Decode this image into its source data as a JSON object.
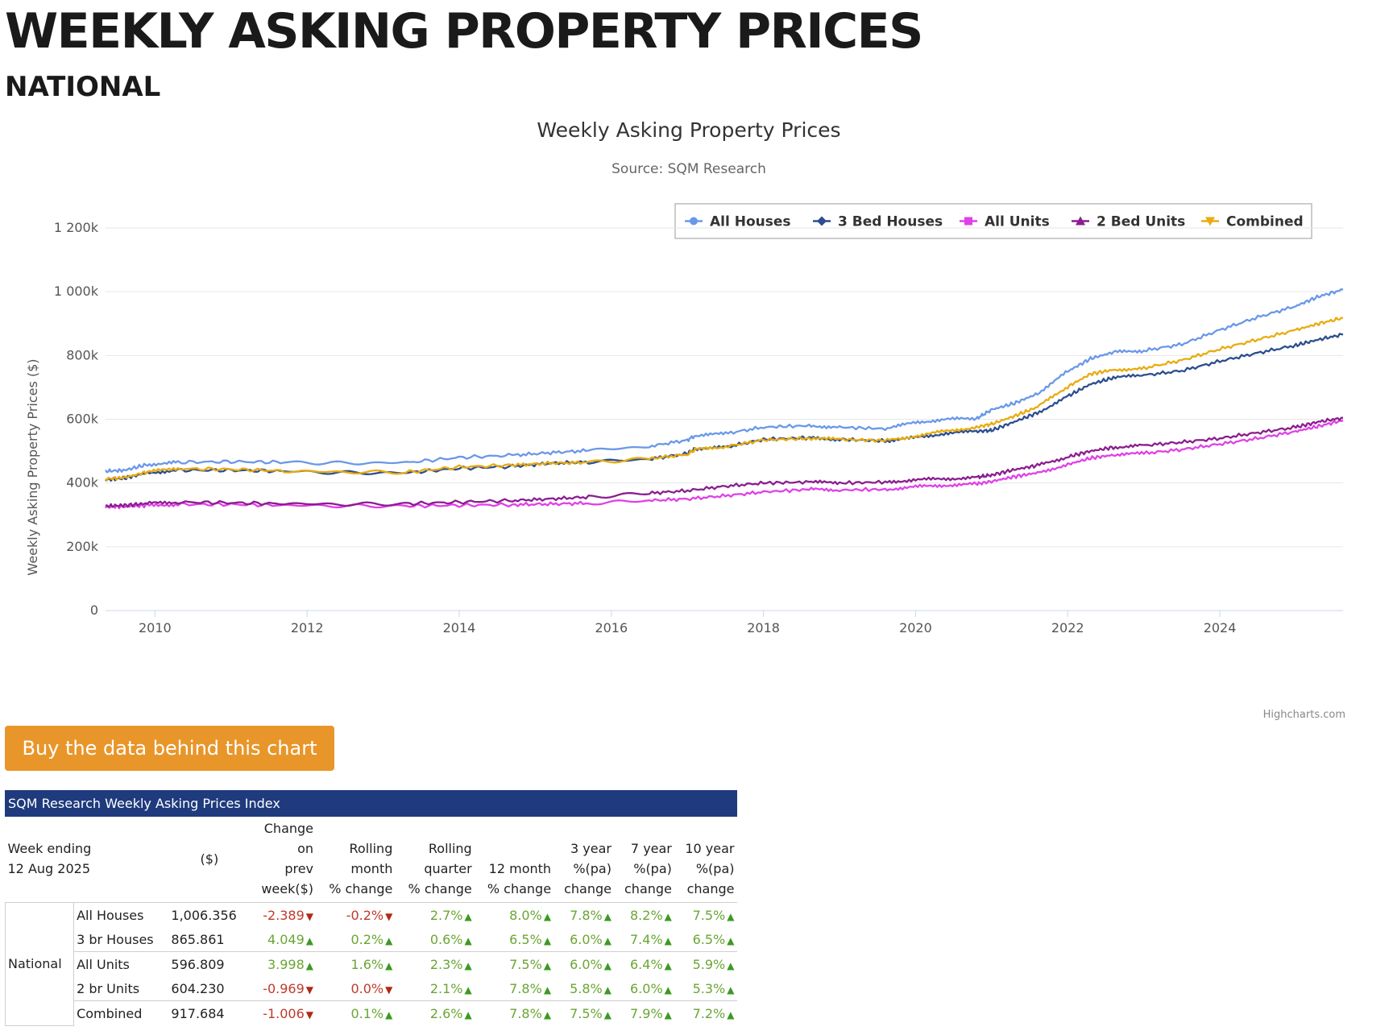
{
  "page": {
    "title": "WEEKLY ASKING PROPERTY PRICES",
    "subtitle": "NATIONAL",
    "buy_button": "Buy the data behind this chart"
  },
  "colors": {
    "all_houses": "#6a98e8",
    "three_bed_houses": "#2d4e8f",
    "all_units": "#e040e8",
    "two_bed_units": "#8b1e8f",
    "combined": "#e8ac10",
    "button": "#e8962a",
    "table_header": "#1f3b7d"
  },
  "chart_data": {
    "type": "line",
    "title": "Weekly Asking Property Prices",
    "subtitle": "Source: SQM Research",
    "xlabel": "",
    "ylabel": "Weekly Asking Property Prices ($)",
    "credits": "Highcharts.com",
    "legend_position": "top-right",
    "grid": true,
    "xlim": [
      2009.35,
      2025.62
    ],
    "ylim": [
      0,
      1200000
    ],
    "yticks": [
      {
        "value": 0,
        "label": "0"
      },
      {
        "value": 200000,
        "label": "200k"
      },
      {
        "value": 400000,
        "label": "400k"
      },
      {
        "value": 600000,
        "label": "600k"
      },
      {
        "value": 800000,
        "label": "800k"
      },
      {
        "value": 1000000,
        "label": "1 000k"
      },
      {
        "value": 1200000,
        "label": "1 200k"
      }
    ],
    "xticks": [
      {
        "value": 2010,
        "label": "2010"
      },
      {
        "value": 2012,
        "label": "2012"
      },
      {
        "value": 2014,
        "label": "2014"
      },
      {
        "value": 2016,
        "label": "2016"
      },
      {
        "value": 2018,
        "label": "2018"
      },
      {
        "value": 2020,
        "label": "2020"
      },
      {
        "value": 2022,
        "label": "2022"
      },
      {
        "value": 2024,
        "label": "2024"
      }
    ],
    "series": [
      {
        "name": "All Houses",
        "key": "all_houses",
        "marker": "circle",
        "x": [
          2009.35,
          2009.6,
          2009.9,
          2010.3,
          2011.0,
          2011.7,
          2012.5,
          2013.3,
          2014.0,
          2014.7,
          2015.2,
          2015.7,
          2016.5,
          2017.0,
          2017.1,
          2017.5,
          2018.0,
          2018.6,
          2019.0,
          2019.6,
          2020.0,
          2020.4,
          2020.8,
          2021.0,
          2021.3,
          2021.6,
          2022.0,
          2022.3,
          2022.6,
          2023.0,
          2023.5,
          2024.0,
          2024.5,
          2025.0,
          2025.3,
          2025.62
        ],
        "y": [
          437000,
          440000,
          458000,
          465000,
          467000,
          465000,
          462000,
          464000,
          480000,
          487000,
          495000,
          502000,
          515000,
          535000,
          548000,
          555000,
          575000,
          580000,
          575000,
          570000,
          590000,
          600000,
          602000,
          630000,
          650000,
          680000,
          750000,
          790000,
          810000,
          815000,
          835000,
          880000,
          920000,
          955000,
          985000,
          1006356
        ]
      },
      {
        "name": "3 Bed Houses",
        "key": "three_bed_houses",
        "marker": "diamond",
        "x": [
          2009.35,
          2009.6,
          2009.9,
          2010.3,
          2011.0,
          2011.7,
          2012.5,
          2013.3,
          2014.0,
          2014.7,
          2015.2,
          2015.7,
          2016.5,
          2017.0,
          2017.1,
          2017.5,
          2018.0,
          2018.6,
          2019.0,
          2019.6,
          2020.0,
          2020.4,
          2020.8,
          2021.0,
          2021.3,
          2021.6,
          2022.0,
          2022.3,
          2022.6,
          2023.0,
          2023.5,
          2024.0,
          2024.5,
          2025.0,
          2025.3,
          2025.62
        ],
        "y": [
          410000,
          415000,
          432000,
          440000,
          440000,
          437000,
          432000,
          432000,
          446000,
          452000,
          462000,
          466000,
          475000,
          492000,
          508000,
          512000,
          537000,
          542000,
          537000,
          532000,
          542000,
          556000,
          562000,
          565000,
          592000,
          620000,
          672000,
          710000,
          730000,
          738000,
          752000,
          782000,
          808000,
          832000,
          850000,
          865861
        ]
      },
      {
        "name": "All Units",
        "key": "all_units",
        "marker": "square",
        "x": [
          2009.35,
          2009.6,
          2009.9,
          2010.3,
          2011.0,
          2011.7,
          2012.5,
          2013.3,
          2014.0,
          2014.7,
          2015.2,
          2015.7,
          2016.5,
          2017.0,
          2017.5,
          2018.0,
          2018.6,
          2019.0,
          2019.6,
          2020.0,
          2020.4,
          2020.8,
          2021.0,
          2021.3,
          2021.6,
          2022.0,
          2022.3,
          2022.6,
          2023.0,
          2023.5,
          2024.0,
          2024.5,
          2025.0,
          2025.3,
          2025.62
        ],
        "y": [
          325000,
          326000,
          330000,
          333000,
          333000,
          330000,
          328000,
          328000,
          330000,
          332000,
          334000,
          337000,
          345000,
          350000,
          360000,
          372000,
          380000,
          378000,
          380000,
          388000,
          393000,
          397000,
          405000,
          420000,
          432000,
          458000,
          478000,
          488000,
          493000,
          505000,
          522000,
          540000,
          562000,
          578000,
          596809
        ]
      },
      {
        "name": "2 Bed Units",
        "key": "two_bed_units",
        "marker": "triangle",
        "x": [
          2009.35,
          2009.6,
          2009.9,
          2010.3,
          2011.0,
          2011.7,
          2012.5,
          2013.3,
          2014.0,
          2014.7,
          2015.2,
          2015.7,
          2016.5,
          2017.0,
          2017.5,
          2018.0,
          2018.6,
          2019.0,
          2019.6,
          2020.0,
          2020.4,
          2020.8,
          2021.0,
          2021.3,
          2021.6,
          2022.0,
          2022.3,
          2022.6,
          2023.0,
          2023.5,
          2024.0,
          2024.5,
          2025.0,
          2025.3,
          2025.62
        ],
        "y": [
          328000,
          330000,
          336000,
          340000,
          338000,
          335000,
          333000,
          335000,
          340000,
          345000,
          350000,
          356000,
          368000,
          376000,
          390000,
          400000,
          403000,
          400000,
          403000,
          410000,
          413000,
          418000,
          425000,
          442000,
          455000,
          482000,
          500000,
          512000,
          518000,
          528000,
          540000,
          558000,
          575000,
          592000,
          604230
        ]
      },
      {
        "name": "Combined",
        "key": "combined",
        "marker": "triangle-down",
        "x": [
          2009.35,
          2009.6,
          2009.9,
          2010.3,
          2011.0,
          2011.7,
          2012.5,
          2013.3,
          2014.0,
          2014.7,
          2015.2,
          2015.7,
          2016.5,
          2017.0,
          2017.1,
          2017.5,
          2018.0,
          2018.6,
          2019.0,
          2019.6,
          2020.0,
          2020.4,
          2020.8,
          2021.0,
          2021.3,
          2021.6,
          2022.0,
          2022.3,
          2022.6,
          2023.0,
          2023.5,
          2024.0,
          2024.5,
          2025.0,
          2025.3,
          2025.62
        ],
        "y": [
          413000,
          417000,
          435000,
          445000,
          443000,
          438000,
          434000,
          434000,
          450000,
          456000,
          462000,
          465000,
          476000,
          490000,
          505000,
          514000,
          535000,
          540000,
          537000,
          533000,
          547000,
          563000,
          575000,
          585000,
          610000,
          638000,
          702000,
          742000,
          755000,
          760000,
          785000,
          820000,
          850000,
          880000,
          900000,
          917684
        ]
      }
    ]
  },
  "table": {
    "caption": "SQM Research Weekly Asking Prices Index",
    "week_label_1": "Week ending",
    "week_label_2": "12 Aug 2025",
    "h_price": "($)",
    "h_change": [
      "Change",
      "on",
      "prev",
      "week($)"
    ],
    "h_rolling_month": [
      "Rolling",
      "month",
      "% change"
    ],
    "h_rolling_quarter": [
      "Rolling",
      "quarter",
      "% change"
    ],
    "h_12m": [
      "12 month",
      "% change"
    ],
    "h_3y": [
      "3 year",
      "%(pa)",
      "change"
    ],
    "h_7y": [
      "7 year",
      "%(pa)",
      "change"
    ],
    "h_10y": [
      "10 year",
      "%(pa)",
      "change"
    ],
    "region": "National",
    "rows": [
      {
        "name": "All Houses",
        "price": "1,006.356",
        "change": "-2.389",
        "change_dir": "down",
        "month": "-0.2%",
        "month_dir": "down",
        "quarter": "2.7%",
        "quarter_dir": "up",
        "m12": "8.0%",
        "m12_dir": "up",
        "y3": "7.8%",
        "y3_dir": "up",
        "y7": "8.2%",
        "y7_dir": "up",
        "y10": "7.5%",
        "y10_dir": "up"
      },
      {
        "name": "3 br Houses",
        "price": "865.861",
        "change": "4.049",
        "change_dir": "up",
        "month": "0.2%",
        "month_dir": "up",
        "quarter": "0.6%",
        "quarter_dir": "up",
        "m12": "6.5%",
        "m12_dir": "up",
        "y3": "6.0%",
        "y3_dir": "up",
        "y7": "7.4%",
        "y7_dir": "up",
        "y10": "6.5%",
        "y10_dir": "up"
      },
      {
        "name": "All Units",
        "price": "596.809",
        "change": "3.998",
        "change_dir": "up",
        "month": "1.6%",
        "month_dir": "up",
        "quarter": "2.3%",
        "quarter_dir": "up",
        "m12": "7.5%",
        "m12_dir": "up",
        "y3": "6.0%",
        "y3_dir": "up",
        "y7": "6.4%",
        "y7_dir": "up",
        "y10": "5.9%",
        "y10_dir": "up"
      },
      {
        "name": "2 br Units",
        "price": "604.230",
        "change": "-0.969",
        "change_dir": "down",
        "month": "0.0%",
        "month_dir": "down",
        "quarter": "2.1%",
        "quarter_dir": "up",
        "m12": "7.8%",
        "m12_dir": "up",
        "y3": "5.8%",
        "y3_dir": "up",
        "y7": "6.0%",
        "y7_dir": "up",
        "y10": "5.3%",
        "y10_dir": "up"
      },
      {
        "name": "Combined",
        "price": "917.684",
        "change": "-1.006",
        "change_dir": "down",
        "month": "0.1%",
        "month_dir": "up",
        "quarter": "2.6%",
        "quarter_dir": "up",
        "m12": "7.8%",
        "m12_dir": "up",
        "y3": "7.5%",
        "y3_dir": "up",
        "y7": "7.9%",
        "y7_dir": "up",
        "y10": "7.2%",
        "y10_dir": "up"
      }
    ]
  }
}
